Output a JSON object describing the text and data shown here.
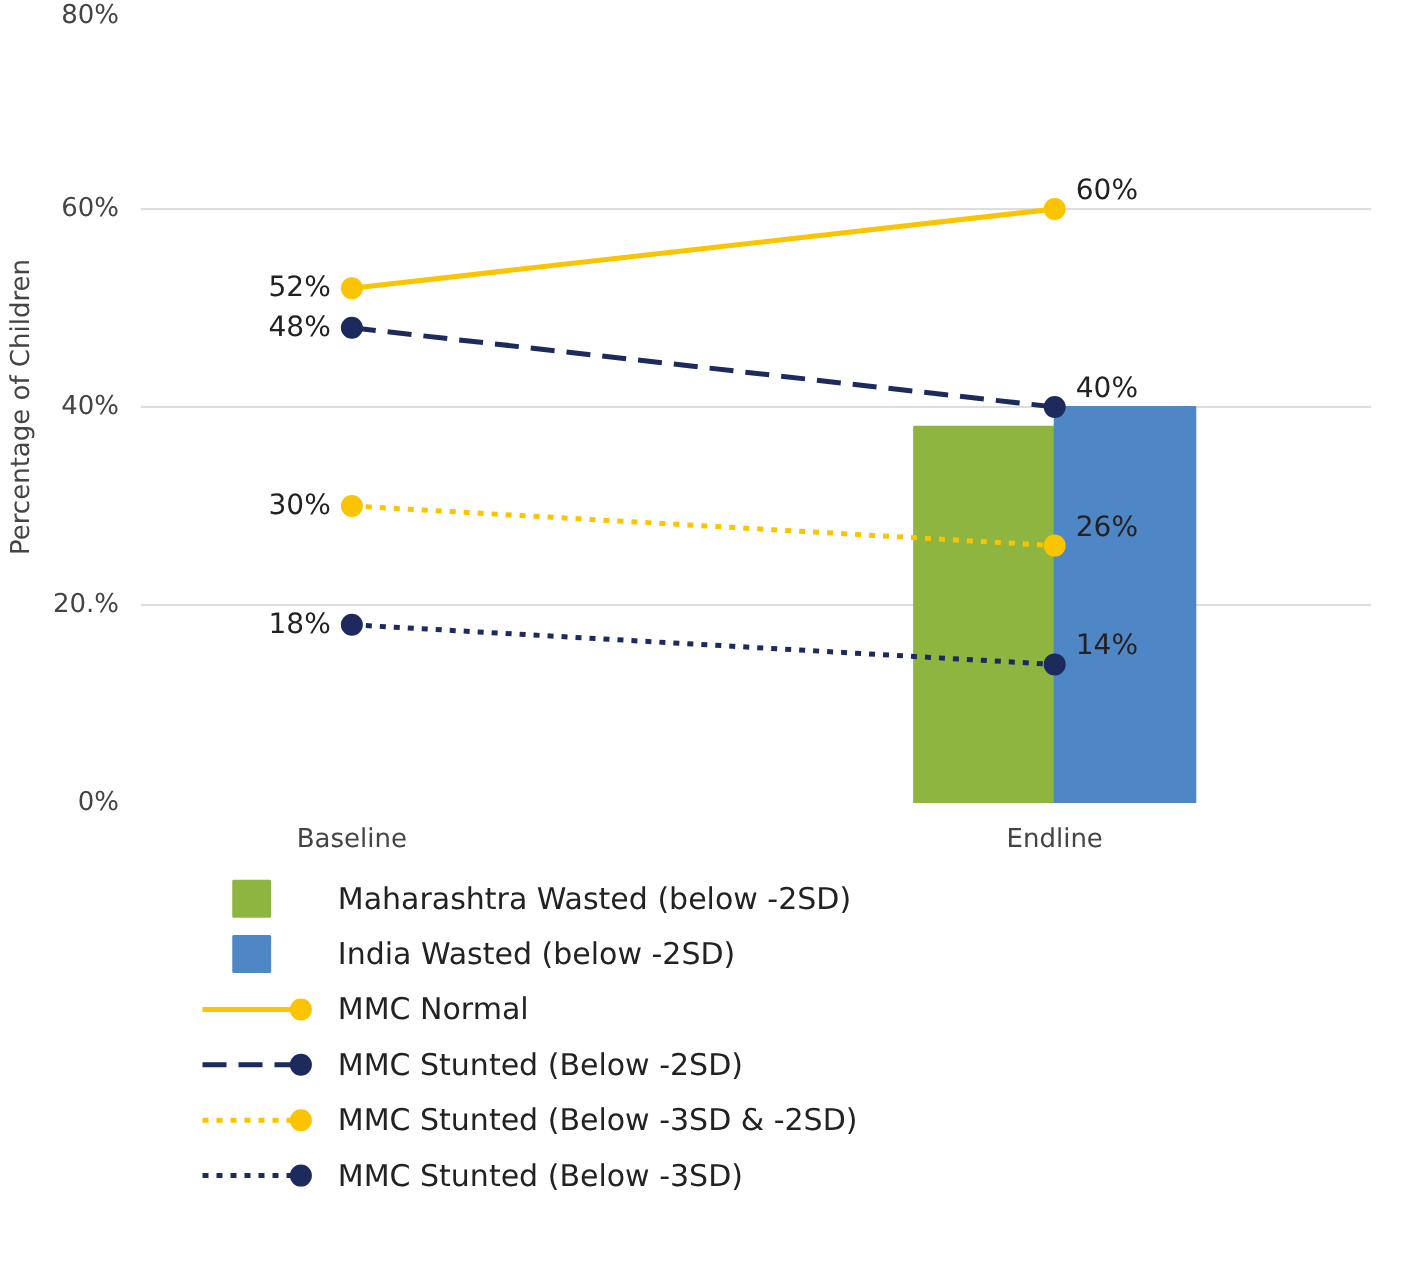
{
  "chart_data": {
    "type": "line",
    "ylabel": "Percentage of Children",
    "categories": [
      "Baseline",
      "Endline"
    ],
    "ylim": [
      0,
      80
    ],
    "yticks": [
      {
        "value": 0,
        "label": "0%"
      },
      {
        "value": 20,
        "label": "20.%"
      },
      {
        "value": 40,
        "label": "40%"
      },
      {
        "value": 60,
        "label": "60%"
      },
      {
        "value": 80,
        "label": "80%"
      }
    ],
    "grid": "y",
    "legend": "bottom",
    "marker": "circle",
    "series": [
      {
        "name": "Maharashtra Wasted (below -2SD)",
        "type": "bar",
        "color": "#8db53f",
        "values": [
          null,
          38
        ]
      },
      {
        "name": "India Wasted (below -2SD)",
        "type": "bar",
        "color": "#4f86c6",
        "values": [
          null,
          40
        ]
      },
      {
        "name": "MMC Normal",
        "color": "#fac400",
        "line_style": "solid",
        "values": [
          52,
          60
        ],
        "value_labels": [
          "52%",
          "60%"
        ]
      },
      {
        "name": "MMC Stunted (Below -2SD)",
        "color": "#1c2a5e",
        "line_style": "dashed",
        "values": [
          48,
          40
        ],
        "value_labels": [
          "48%",
          "40%"
        ]
      },
      {
        "name": "MMC Stunted (Below -3SD & -2SD)",
        "color": "#fac400",
        "line_style": "dotted",
        "values": [
          30,
          26
        ],
        "value_labels": [
          "30%",
          "26%"
        ]
      },
      {
        "name": "MMC Stunted (Below -3SD)",
        "color": "#1c2a5e",
        "line_style": "dotted",
        "values": [
          18,
          14
        ],
        "value_labels": [
          "18%",
          "14%"
        ]
      }
    ]
  }
}
